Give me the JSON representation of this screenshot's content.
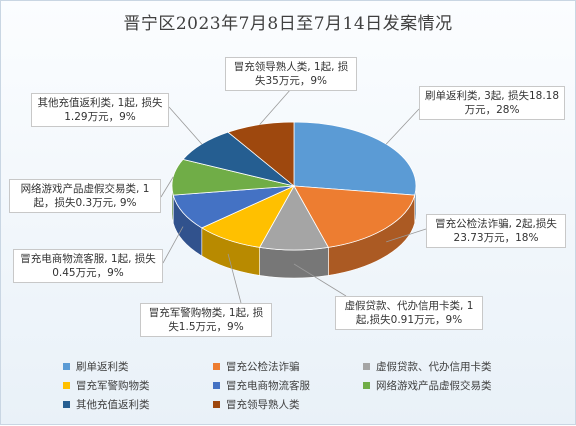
{
  "chart_data": {
    "type": "pie",
    "title": "晋宁区2023年7月8日至7月14日发案情况",
    "series": [
      {
        "name": "刷单返利类",
        "cases": 3,
        "loss": 18.18,
        "pct": 28,
        "color": "#5b9bd5",
        "label": "刷单返利类, 3起, 损失18.18万元，28%"
      },
      {
        "name": "冒充公检法诈骗",
        "cases": 2,
        "loss": 23.73,
        "pct": 18,
        "color": "#ed7d31",
        "label": "冒充公检法诈骗, 2起,损失23.73万元，18%"
      },
      {
        "name": "虚假贷款、代办信用卡类",
        "cases": 1,
        "loss": 0.91,
        "pct": 9,
        "color": "#a5a5a5",
        "label": "虚假贷款、代办信用卡类, 1起,损失0.91万元，9%"
      },
      {
        "name": "冒充军警购物类",
        "cases": 1,
        "loss": 1.5,
        "pct": 9,
        "color": "#ffc000",
        "label": "冒充军警购物类, 1起, 损失1.5万元，9%"
      },
      {
        "name": "冒充电商物流客服",
        "cases": 1,
        "loss": 0.45,
        "pct": 9,
        "color": "#4472c4",
        "label": "冒充电商物流客服, 1起, 损失0.45万元，9%"
      },
      {
        "name": "网络游戏产品虚假交易类",
        "cases": 1,
        "loss": 0.3,
        "pct": 9,
        "color": "#70ad47",
        "label": "网络游戏产品虚假交易类, 1起，损失0.3万元, 9%"
      },
      {
        "name": "其他充值返利类",
        "cases": 1,
        "loss": 1.29,
        "pct": 9,
        "color": "#255e91",
        "label": "其他充值返利类, 1起, 损失1.29万元，9%"
      },
      {
        "name": "冒充领导熟人类",
        "cases": 1,
        "loss": 35,
        "pct": 9,
        "color": "#9e480e",
        "label": "冒充领导熟人类, 1起, 损失35万元，9%"
      }
    ],
    "legend_position": "bottom"
  }
}
